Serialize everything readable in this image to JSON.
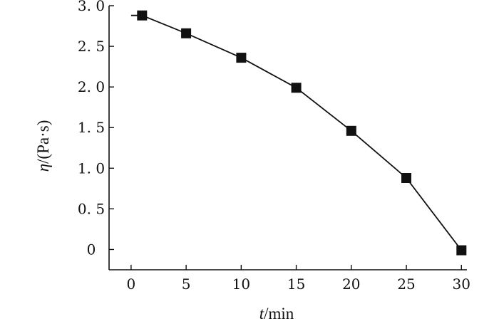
{
  "chart_data": {
    "type": "line",
    "title": "",
    "xlabel_symbol": "t",
    "xlabel_unit": "/min",
    "ylabel_symbol": "η",
    "ylabel_unit": "/(Pa·s)",
    "xlim": [
      -2,
      30.5
    ],
    "ylim": [
      -0.25,
      3.0
    ],
    "x_ticks": [
      0,
      5,
      10,
      15,
      20,
      25,
      30
    ],
    "x_tick_labels": [
      "0",
      "5",
      "10",
      "15",
      "20",
      "25",
      "30"
    ],
    "y_ticks": [
      0,
      0.5,
      1.0,
      1.5,
      2.0,
      2.5,
      3.0
    ],
    "y_tick_labels": [
      "0",
      "0. 5",
      "1. 0",
      "1. 5",
      "2. 0",
      "2. 5",
      "3. 0"
    ],
    "grid": false,
    "legend": "none",
    "color": "#111111",
    "series": [
      {
        "x": [
          0,
          1,
          5,
          10,
          15,
          20,
          25,
          30
        ],
        "y": [
          2.88,
          2.88,
          2.66,
          2.36,
          1.99,
          1.46,
          0.88,
          -0.01
        ],
        "markers": [
          false,
          true,
          true,
          true,
          true,
          true,
          true,
          true
        ]
      }
    ]
  }
}
